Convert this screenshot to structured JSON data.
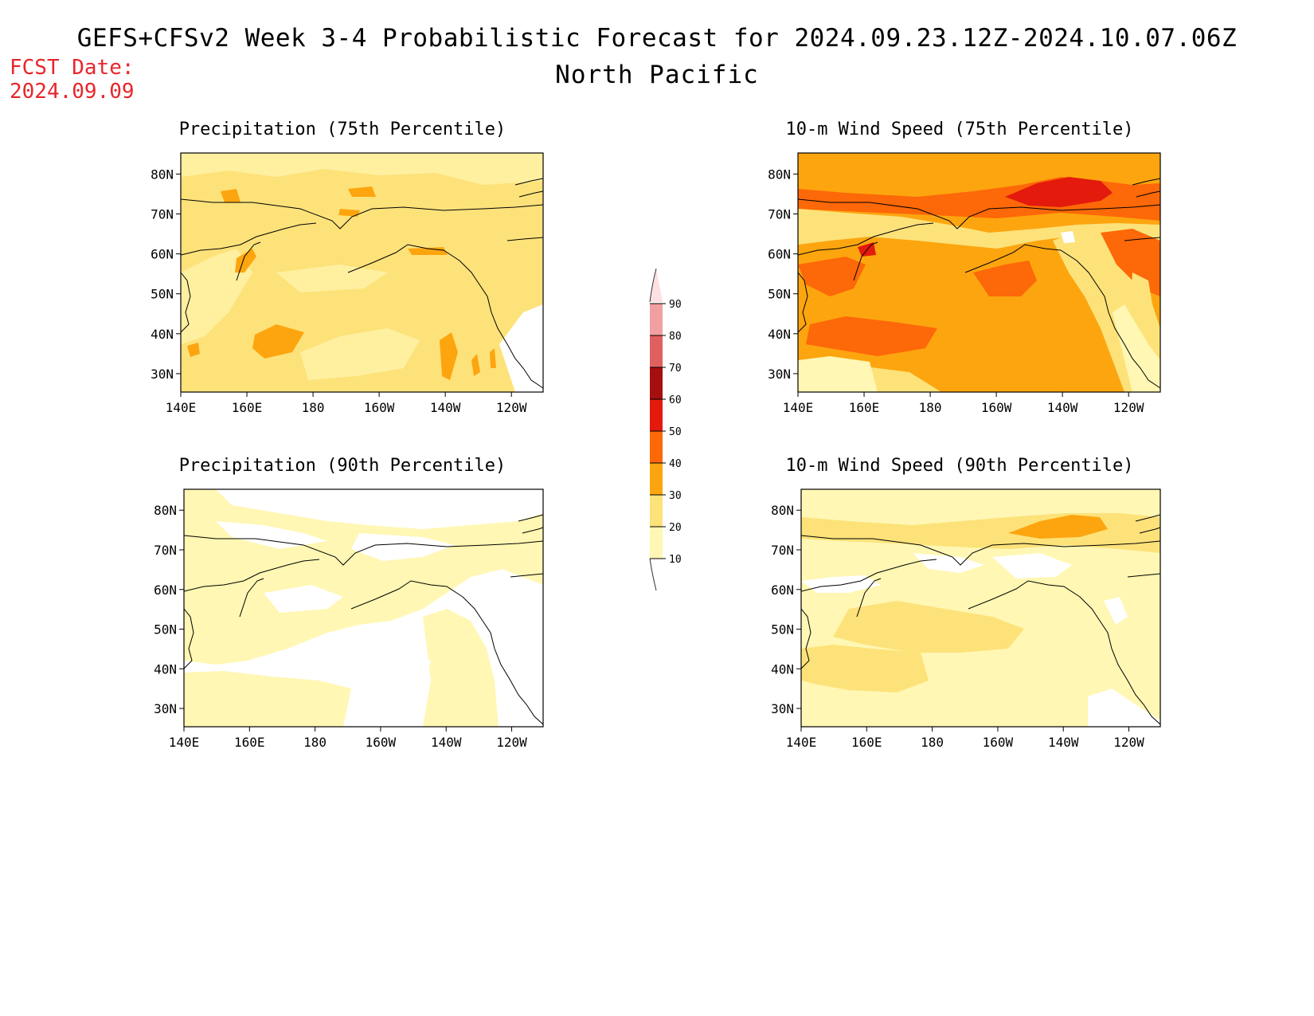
{
  "header": {
    "title": "GEFS+CFSv2 Week 3-4 Probabilistic Forecast for 2024.09.23.12Z-2024.10.07.06Z",
    "subtitle": "North Pacific",
    "fcst_label": "FCST Date:",
    "fcst_value": "2024.09.09"
  },
  "axes": {
    "lat_ticks": [
      "80N",
      "70N",
      "60N",
      "50N",
      "40N",
      "30N"
    ],
    "lon_ticks": [
      "140E",
      "160E",
      "180",
      "160W",
      "140W",
      "120W"
    ]
  },
  "panels": [
    {
      "title": "Precipitation (75th Percentile)",
      "variable": "precip_p75"
    },
    {
      "title": "10-m Wind Speed (75th Percentile)",
      "variable": "wind_p75"
    },
    {
      "title": "Precipitation (90th Percentile)",
      "variable": "precip_p90"
    },
    {
      "title": "10-m Wind Speed (90th Percentile)",
      "variable": "wind_p90"
    }
  ],
  "colorbar": {
    "labels": [
      "90",
      "80",
      "70",
      "60",
      "50",
      "40",
      "30",
      "20",
      "10"
    ],
    "colors": {
      "below_10": "#ffffff",
      "10_20": "#fff7b3",
      "20_30": "#fde27a",
      "30_40": "#fda50f",
      "40_50": "#fd6808",
      "50_60": "#e31a0c",
      "60_70": "#a50f0f",
      "70_80": "#e06060",
      "80_90": "#f0a0a0",
      "above_90": "#fde0e0"
    }
  }
}
